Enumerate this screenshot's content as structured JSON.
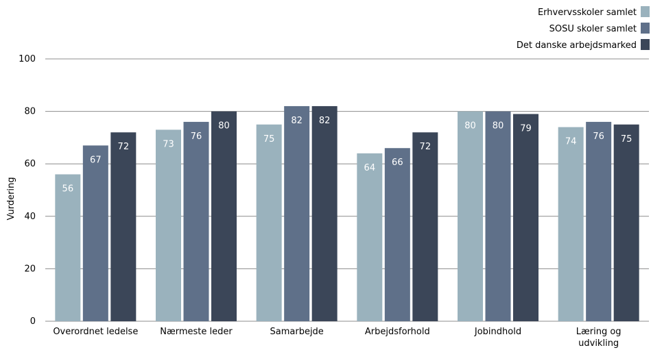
{
  "chart_data": {
    "type": "bar",
    "ylabel": "Vurdering",
    "ylim": [
      0,
      100
    ],
    "yticks": [
      0,
      20,
      40,
      60,
      80,
      100
    ],
    "grid": true,
    "legend_position": "top-right",
    "categories": [
      [
        "Overordnet ledelse"
      ],
      [
        "Nærmeste leder"
      ],
      [
        "Samarbejde"
      ],
      [
        "Arbejdsforhold"
      ],
      [
        "Jobindhold"
      ],
      [
        "Læring og",
        "udvikling"
      ]
    ],
    "series": [
      {
        "name": "Erhvervsskoler samlet",
        "color": "#9ab2bd",
        "values": [
          56,
          73,
          75,
          64,
          80,
          74
        ]
      },
      {
        "name": "SOSU skoler samlet",
        "color": "#5f7089",
        "values": [
          67,
          76,
          82,
          66,
          80,
          76
        ]
      },
      {
        "name": "Det danske arbejdsmarked",
        "color": "#3b4658",
        "values": [
          72,
          80,
          82,
          72,
          79,
          75
        ]
      }
    ]
  }
}
